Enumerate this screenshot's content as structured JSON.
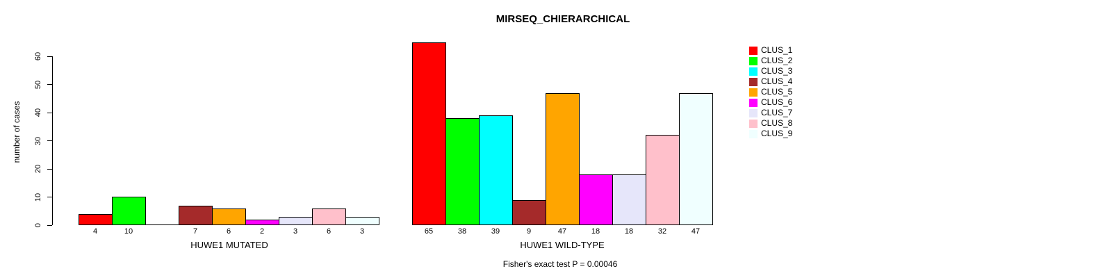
{
  "chart_data": {
    "type": "bar",
    "title": "MIRSEQ_CHIERARCHICAL",
    "ylabel": "number of cases",
    "ylim": [
      0,
      60
    ],
    "yticks": [
      0,
      10,
      20,
      30,
      40,
      50,
      60
    ],
    "grid": false,
    "legend_position": "right",
    "categories": [
      "CLUS_1",
      "CLUS_2",
      "CLUS_3",
      "CLUS_4",
      "CLUS_5",
      "CLUS_6",
      "CLUS_7",
      "CLUS_8",
      "CLUS_9"
    ],
    "colors": [
      "#FF0000",
      "#00FF00",
      "#00FFFF",
      "#A52A2A",
      "#FFA500",
      "#FF00FF",
      "#E6E6FA",
      "#FFC0CB",
      "#F0FFFF"
    ],
    "series": [
      {
        "name": "HUWE1 MUTATED",
        "values": [
          4,
          10,
          0,
          7,
          6,
          2,
          3,
          6,
          3
        ]
      },
      {
        "name": "HUWE1 WILD-TYPE",
        "values": [
          65,
          38,
          39,
          9,
          47,
          18,
          18,
          32,
          47
        ]
      }
    ],
    "annotation": "Fisher's exact test P = 0.00046"
  }
}
